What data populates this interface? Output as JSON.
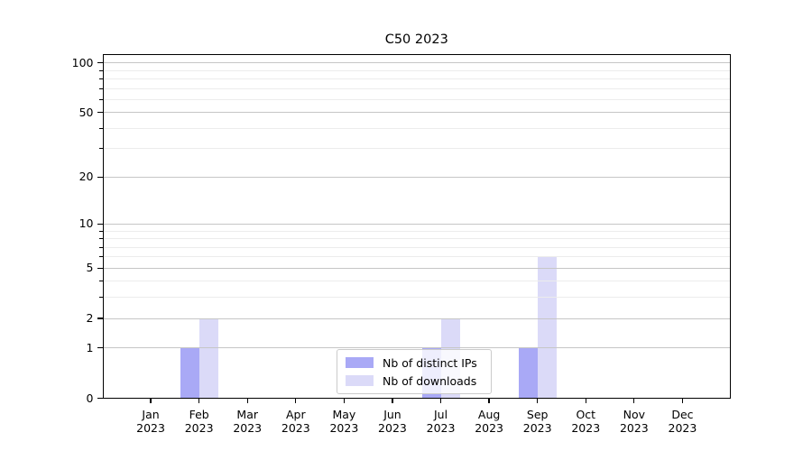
{
  "chart_data": {
    "type": "bar",
    "title": "C50 2023",
    "year_label": "2023",
    "months": [
      "Jan",
      "Feb",
      "Mar",
      "Apr",
      "May",
      "Jun",
      "Jul",
      "Aug",
      "Sep",
      "Oct",
      "Nov",
      "Dec"
    ],
    "categories": [
      "Jan 2023",
      "Feb 2023",
      "Mar 2023",
      "Apr 2023",
      "May 2023",
      "Jun 2023",
      "Jul 2023",
      "Aug 2023",
      "Sep 2023",
      "Oct 2023",
      "Nov 2023",
      "Dec 2023"
    ],
    "series": [
      {
        "name": "Nb of distinct IPs",
        "color": "#a9a9f6",
        "values": [
          0,
          1,
          0,
          0,
          0,
          0,
          1,
          0,
          1,
          0,
          0,
          0
        ]
      },
      {
        "name": "Nb of downloads",
        "color": "#dbdaf8",
        "values": [
          0,
          2,
          0,
          0,
          0,
          0,
          2,
          0,
          6,
          0,
          0,
          0
        ]
      }
    ],
    "yscale": "log1p",
    "ylim": [
      0,
      113
    ],
    "y_major_ticks": [
      0,
      1,
      2,
      5,
      10,
      20,
      50,
      100
    ],
    "y_minor_ticks": [
      3,
      4,
      6,
      7,
      8,
      9,
      30,
      40,
      60,
      70,
      80,
      90
    ],
    "grid": true,
    "legend_position": "lower center"
  },
  "colors": {
    "major_grid": "#c6c6c6",
    "minor_grid": "#ececec",
    "spine": "#000000",
    "tick": "#000000",
    "legend_border": "#cbcbcb"
  }
}
